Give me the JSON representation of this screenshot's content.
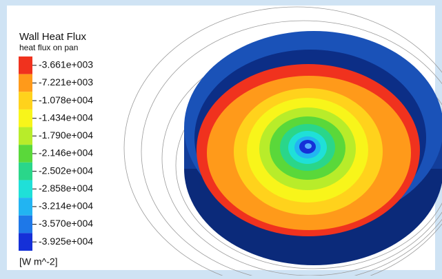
{
  "legend": {
    "title": "Wall Heat Flux",
    "subtitle": "heat flux on pan",
    "levels": [
      "-3.661e+003",
      "-7.221e+003",
      "-1.078e+004",
      "-1.434e+004",
      "-1.790e+004",
      "-2.146e+004",
      "-2.502e+004",
      "-2.858e+004",
      "-3.214e+004",
      "-3.570e+004",
      "-3.925e+004"
    ],
    "colors": [
      "#f0321e",
      "#ff9a1a",
      "#ffd21c",
      "#f8f51a",
      "#b8ec2a",
      "#5ad83a",
      "#2ad68a",
      "#1fe0d8",
      "#22b4f2",
      "#1e78e8",
      "#1530d8"
    ],
    "unit": "[W m^-2]"
  }
}
